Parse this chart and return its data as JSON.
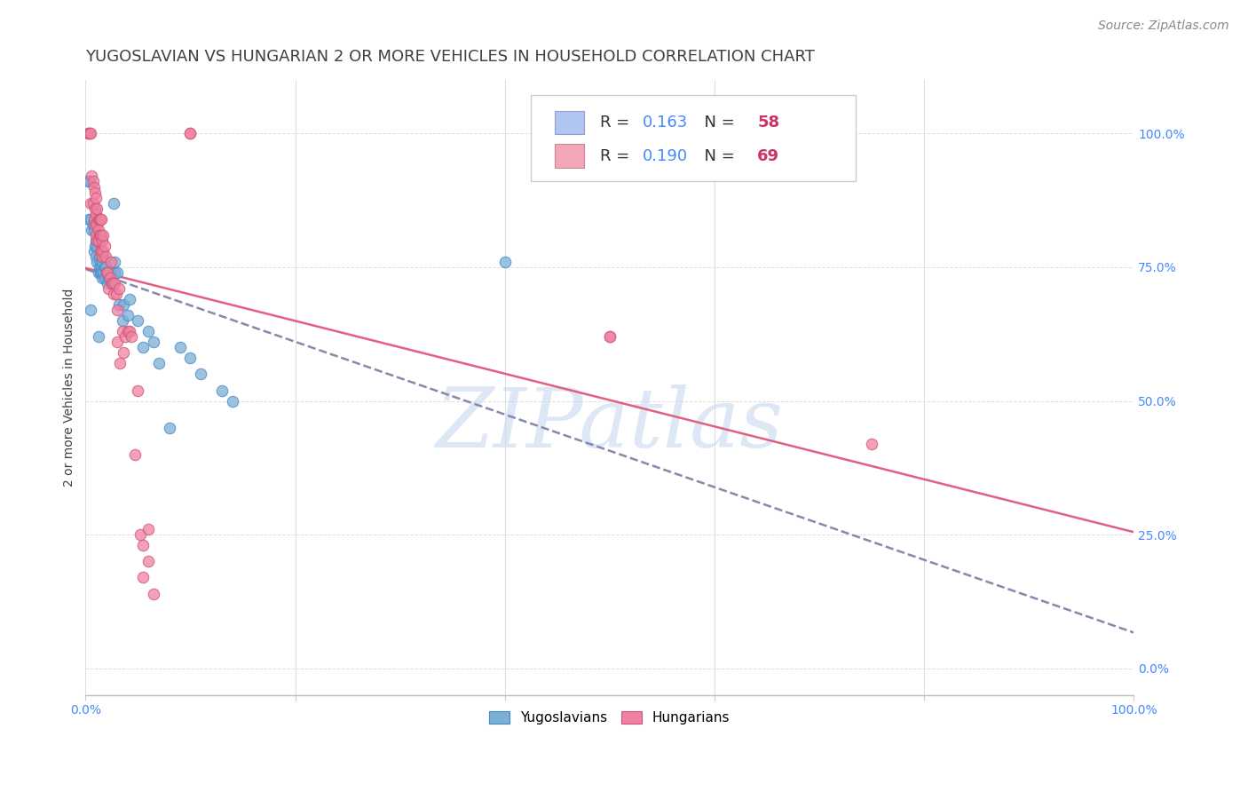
{
  "title": "YUGOSLAVIAN VS HUNGARIAN 2 OR MORE VEHICLES IN HOUSEHOLD CORRELATION CHART",
  "source": "Source: ZipAtlas.com",
  "ylabel": "2 or more Vehicles in Household",
  "watermark": "ZIPatlas",
  "legend": {
    "yugoslavian": {
      "R": "0.163",
      "N": "58",
      "color": "#aec6f0"
    },
    "hungarian": {
      "R": "0.190",
      "N": "69",
      "color": "#f4a7b9"
    }
  },
  "yugoslav_color": "#7bafd4",
  "hungarian_color": "#f080a0",
  "trend_yugoslav_color": "#8888aa",
  "trend_hungarian_color": "#e06080",
  "yugoslav_points": [
    [
      0.2,
      91.0
    ],
    [
      0.3,
      84.0
    ],
    [
      0.4,
      91.0
    ],
    [
      0.5,
      84.0
    ],
    [
      0.6,
      82.0
    ],
    [
      0.7,
      83.0
    ],
    [
      0.8,
      82.0
    ],
    [
      0.8,
      78.0
    ],
    [
      0.9,
      79.0
    ],
    [
      1.0,
      80.0
    ],
    [
      1.0,
      77.0
    ],
    [
      1.1,
      79.0
    ],
    [
      1.1,
      76.0
    ],
    [
      1.2,
      80.0
    ],
    [
      1.2,
      74.0
    ],
    [
      1.3,
      77.0
    ],
    [
      1.3,
      75.0
    ],
    [
      1.4,
      76.0
    ],
    [
      1.4,
      74.0
    ],
    [
      1.5,
      75.0
    ],
    [
      1.5,
      74.0
    ],
    [
      1.6,
      76.0
    ],
    [
      1.6,
      73.0
    ],
    [
      1.7,
      77.0
    ],
    [
      1.7,
      74.0
    ],
    [
      1.8,
      75.0
    ],
    [
      1.8,
      73.0
    ],
    [
      1.9,
      75.0
    ],
    [
      2.0,
      74.0
    ],
    [
      2.1,
      72.0
    ],
    [
      2.2,
      73.0
    ],
    [
      2.3,
      74.0
    ],
    [
      2.4,
      74.0
    ],
    [
      2.5,
      73.0
    ],
    [
      2.5,
      72.0
    ],
    [
      2.7,
      87.0
    ],
    [
      2.8,
      74.0
    ],
    [
      2.8,
      76.0
    ],
    [
      3.0,
      74.0
    ],
    [
      3.2,
      68.0
    ],
    [
      3.5,
      65.0
    ],
    [
      3.6,
      68.0
    ],
    [
      4.0,
      66.0
    ],
    [
      4.2,
      69.0
    ],
    [
      5.0,
      65.0
    ],
    [
      5.5,
      60.0
    ],
    [
      6.0,
      63.0
    ],
    [
      6.5,
      61.0
    ],
    [
      7.0,
      57.0
    ],
    [
      8.0,
      45.0
    ],
    [
      9.0,
      60.0
    ],
    [
      10.0,
      58.0
    ],
    [
      11.0,
      55.0
    ],
    [
      13.0,
      52.0
    ],
    [
      14.0,
      50.0
    ],
    [
      40.0,
      76.0
    ],
    [
      0.5,
      67.0
    ],
    [
      1.2,
      62.0
    ]
  ],
  "hungarian_points": [
    [
      0.2,
      100.0
    ],
    [
      0.3,
      100.0
    ],
    [
      0.4,
      100.0
    ],
    [
      0.5,
      100.0
    ],
    [
      0.5,
      87.0
    ],
    [
      0.6,
      92.0
    ],
    [
      0.7,
      91.0
    ],
    [
      0.7,
      87.0
    ],
    [
      0.8,
      90.0
    ],
    [
      0.8,
      84.0
    ],
    [
      0.9,
      89.0
    ],
    [
      0.9,
      86.0
    ],
    [
      0.9,
      83.0
    ],
    [
      1.0,
      88.0
    ],
    [
      1.0,
      85.0
    ],
    [
      1.0,
      81.0
    ],
    [
      1.1,
      86.0
    ],
    [
      1.1,
      83.0
    ],
    [
      1.1,
      80.0
    ],
    [
      1.2,
      84.0
    ],
    [
      1.2,
      82.0
    ],
    [
      1.2,
      80.0
    ],
    [
      1.3,
      84.0
    ],
    [
      1.3,
      81.0
    ],
    [
      1.4,
      84.0
    ],
    [
      1.4,
      81.0
    ],
    [
      1.4,
      78.0
    ],
    [
      1.5,
      84.0
    ],
    [
      1.5,
      81.0
    ],
    [
      1.5,
      78.0
    ],
    [
      1.6,
      80.0
    ],
    [
      1.6,
      77.0
    ],
    [
      1.7,
      81.0
    ],
    [
      1.7,
      78.0
    ],
    [
      1.8,
      79.0
    ],
    [
      1.9,
      77.0
    ],
    [
      2.0,
      74.0
    ],
    [
      2.1,
      74.0
    ],
    [
      2.2,
      71.0
    ],
    [
      2.3,
      73.0
    ],
    [
      2.4,
      76.0
    ],
    [
      2.5,
      72.0
    ],
    [
      2.6,
      72.0
    ],
    [
      2.7,
      70.0
    ],
    [
      2.8,
      72.0
    ],
    [
      2.9,
      70.0
    ],
    [
      3.0,
      67.0
    ],
    [
      3.0,
      61.0
    ],
    [
      3.2,
      71.0
    ],
    [
      3.3,
      57.0
    ],
    [
      3.5,
      63.0
    ],
    [
      3.6,
      59.0
    ],
    [
      3.8,
      62.0
    ],
    [
      4.0,
      63.0
    ],
    [
      4.2,
      63.0
    ],
    [
      4.4,
      62.0
    ],
    [
      4.7,
      40.0
    ],
    [
      5.0,
      52.0
    ],
    [
      5.2,
      25.0
    ],
    [
      5.5,
      23.0
    ],
    [
      5.5,
      17.0
    ],
    [
      6.0,
      26.0
    ],
    [
      6.0,
      20.0
    ],
    [
      6.5,
      14.0
    ],
    [
      50.0,
      62.0
    ],
    [
      50.0,
      62.0
    ],
    [
      75.0,
      42.0
    ],
    [
      10.0,
      100.0
    ],
    [
      10.0,
      100.0
    ]
  ],
  "xlim": [
    0,
    100
  ],
  "ylim": [
    -5,
    110
  ],
  "right_axis_ticks": [
    0,
    25,
    50,
    75,
    100
  ],
  "right_axis_labels": [
    "0.0%",
    "25.0%",
    "50.0%",
    "75.0%",
    "100.0%"
  ],
  "x_tick_positions": [
    0,
    20,
    40,
    60,
    80,
    100
  ],
  "background_color": "#ffffff",
  "grid_color": "#dddddd",
  "title_color": "#404040",
  "source_color": "#888888",
  "right_axis_color": "#4488ff",
  "legend_R_color": "#4488ff",
  "legend_N_color": "#cc3366",
  "watermark_color": "#c8d8f0",
  "marker_size": 9,
  "marker_alpha": 0.75,
  "title_fontsize": 13,
  "source_fontsize": 10,
  "axis_label_fontsize": 10,
  "legend_fontsize": 13
}
